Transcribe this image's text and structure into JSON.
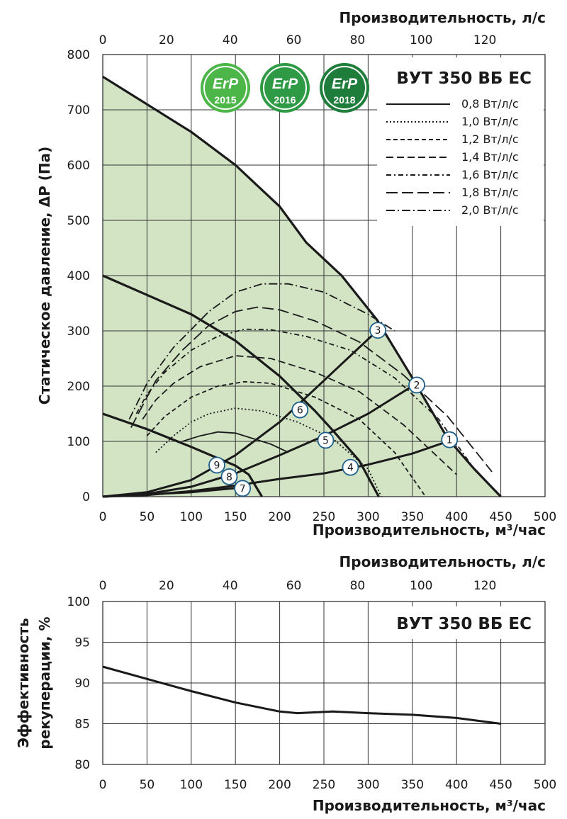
{
  "colors": {
    "fill": "#d2e4c4",
    "curve": "#1a1a1a",
    "grid": "#333333",
    "badge_green_1": "#4cb648",
    "badge_green_2": "#2e9a45",
    "badge_green_3": "#1f7d3c"
  },
  "badges": [
    {
      "title": "ErP",
      "year": "2015"
    },
    {
      "title": "ErP",
      "year": "2016"
    },
    {
      "title": "ErP",
      "year": "2018"
    }
  ],
  "chart_data": [
    {
      "type": "line",
      "model": "ВУТ 350 ВБ ЕС",
      "xlabel": "Производительность, м³/час",
      "x2label": "Производительность, л/с",
      "ylabel": "Статическое давление, ΔP (Па)",
      "xlim": [
        0,
        500
      ],
      "ylim": [
        0,
        800
      ],
      "x_ticks": [
        0,
        50,
        100,
        150,
        200,
        250,
        300,
        350,
        400,
        450,
        500
      ],
      "x2_ticks": [
        0,
        20,
        40,
        60,
        80,
        100,
        120
      ],
      "y_ticks": [
        0,
        100,
        200,
        300,
        400,
        500,
        600,
        700,
        800
      ],
      "legend": [
        {
          "label": "0,8 Вт/л/с",
          "dash": "solid"
        },
        {
          "label": "1,0 Вт/л/с",
          "dash": "2,3"
        },
        {
          "label": "1,2 Вт/л/с",
          "dash": "6,4"
        },
        {
          "label": "1,4 Вт/л/с",
          "dash": "10,5"
        },
        {
          "label": "1,6 Вт/л/с",
          "dash": "7,4,2,4"
        },
        {
          "label": "1,8 Вт/л/с",
          "dash": "16,6"
        },
        {
          "label": "2,0 Вт/л/с",
          "dash": "12,4,2,4"
        }
      ],
      "fan_curves": [
        {
          "name": "max",
          "points": [
            [
              0,
              760
            ],
            [
              50,
              710
            ],
            [
              100,
              660
            ],
            [
              150,
              600
            ],
            [
              200,
              525
            ],
            [
              230,
              460
            ],
            [
              270,
              400
            ],
            [
              310,
              320
            ],
            [
              350,
              215
            ],
            [
              390,
              105
            ],
            [
              420,
              50
            ],
            [
              450,
              0
            ]
          ]
        },
        {
          "name": "mid",
          "points": [
            [
              0,
              400
            ],
            [
              50,
              365
            ],
            [
              100,
              330
            ],
            [
              150,
              282
            ],
            [
              200,
              218
            ],
            [
              240,
              155
            ],
            [
              260,
              120
            ],
            [
              290,
              65
            ],
            [
              312,
              0
            ]
          ]
        },
        {
          "name": "low",
          "points": [
            [
              0,
              150
            ],
            [
              50,
              122
            ],
            [
              100,
              90
            ],
            [
              150,
              56
            ],
            [
              165,
              40
            ],
            [
              180,
              0
            ]
          ]
        }
      ],
      "network_curves": [
        {
          "name": "A",
          "points": [
            [
              0,
              0
            ],
            [
              50,
              8
            ],
            [
              100,
              30
            ],
            [
              150,
              75
            ],
            [
              200,
              135
            ],
            [
              250,
              210
            ],
            [
              310,
              300
            ]
          ]
        },
        {
          "name": "B",
          "points": [
            [
              0,
              0
            ],
            [
              50,
              5
            ],
            [
              100,
              18
            ],
            [
              150,
              42
            ],
            [
              200,
              75
            ],
            [
              250,
              110
            ],
            [
              300,
              150
            ],
            [
              350,
              200
            ]
          ]
        },
        {
          "name": "C",
          "points": [
            [
              0,
              0
            ],
            [
              50,
              3
            ],
            [
              100,
              10
            ],
            [
              150,
              20
            ],
            [
              200,
              32
            ],
            [
              250,
              42
            ],
            [
              300,
              58
            ],
            [
              350,
              78
            ],
            [
              390,
              100
            ]
          ]
        },
        {
          "name": "D",
          "points": [
            [
              0,
              0
            ],
            [
              100,
              8
            ],
            [
              160,
              17
            ]
          ]
        }
      ],
      "sfp_curves": [
        {
          "label": "0,8 Вт/л/с",
          "points": [
            [
              90,
              100
            ],
            [
              110,
              110
            ],
            [
              130,
              117
            ],
            [
              150,
              115
            ],
            [
              170,
              105
            ],
            [
              190,
              95
            ],
            [
              210,
              80
            ]
          ]
        },
        {
          "label": "1,0 Вт/л/с",
          "points": [
            [
              60,
              80
            ],
            [
              80,
              110
            ],
            [
              100,
              135
            ],
            [
              120,
              150
            ],
            [
              150,
              160
            ],
            [
              180,
              155
            ],
            [
              220,
              135
            ],
            [
              260,
              105
            ],
            [
              300,
              50
            ],
            [
              315,
              0
            ]
          ]
        },
        {
          "label": "1,2 Вт/л/с",
          "points": [
            [
              50,
              110
            ],
            [
              70,
              145
            ],
            [
              100,
              180
            ],
            [
              130,
              200
            ],
            [
              160,
              208
            ],
            [
              190,
              205
            ],
            [
              240,
              180
            ],
            [
              290,
              140
            ],
            [
              330,
              80
            ],
            [
              365,
              0
            ]
          ]
        },
        {
          "label": "1,4 Вт/л/с",
          "points": [
            [
              45,
              140
            ],
            [
              60,
              175
            ],
            [
              80,
              205
            ],
            [
              110,
              235
            ],
            [
              150,
              255
            ],
            [
              190,
              250
            ],
            [
              240,
              225
            ],
            [
              290,
              190
            ],
            [
              340,
              130
            ],
            [
              400,
              40
            ]
          ]
        },
        {
          "label": "1,6 Вт/л/с",
          "points": [
            [
              38,
              150
            ],
            [
              50,
              185
            ],
            [
              70,
              225
            ],
            [
              100,
              265
            ],
            [
              130,
              290
            ],
            [
              160,
              303
            ],
            [
              190,
              302
            ],
            [
              230,
              290
            ],
            [
              280,
              265
            ],
            [
              330,
              215
            ],
            [
              380,
              140
            ],
            [
              420,
              50
            ]
          ]
        },
        {
          "label": "1,8 Вт/л/с",
          "points": [
            [
              32,
              125
            ],
            [
              45,
              165
            ],
            [
              60,
              210
            ],
            [
              90,
              265
            ],
            [
              120,
              310
            ],
            [
              150,
              335
            ],
            [
              175,
              343
            ],
            [
              200,
              338
            ],
            [
              240,
              318
            ],
            [
              290,
              280
            ],
            [
              340,
              220
            ],
            [
              390,
              145
            ],
            [
              440,
              45
            ]
          ]
        },
        {
          "label": "2,0 Вт/л/с",
          "points": [
            [
              30,
              140
            ],
            [
              50,
              205
            ],
            [
              80,
              270
            ],
            [
              120,
              335
            ],
            [
              150,
              370
            ],
            [
              180,
              385
            ],
            [
              210,
              385
            ],
            [
              250,
              370
            ],
            [
              300,
              330
            ],
            [
              330,
              300
            ]
          ]
        }
      ],
      "markers": [
        {
          "label": "1",
          "x": 392,
          "y": 103
        },
        {
          "label": "2",
          "x": 355,
          "y": 202
        },
        {
          "label": "3",
          "x": 311,
          "y": 301
        },
        {
          "label": "4",
          "x": 280,
          "y": 53
        },
        {
          "label": "5",
          "x": 252,
          "y": 102
        },
        {
          "label": "6",
          "x": 223,
          "y": 157
        },
        {
          "label": "7",
          "x": 158,
          "y": 15
        },
        {
          "label": "8",
          "x": 143,
          "y": 36
        },
        {
          "label": "9",
          "x": 129,
          "y": 57
        }
      ]
    },
    {
      "type": "line",
      "model": "ВУТ 350 ВБ ЕС",
      "xlabel": "Производительность, м³/час",
      "x2label": "Производительность, л/с",
      "ylabel_line1": "Эффективность",
      "ylabel_line2": "рекуперации, %",
      "xlim": [
        0,
        500
      ],
      "ylim": [
        80,
        100
      ],
      "x_ticks": [
        0,
        50,
        100,
        150,
        200,
        250,
        300,
        350,
        400,
        450,
        500
      ],
      "x2_ticks": [
        0,
        20,
        40,
        60,
        80,
        100,
        120
      ],
      "y_ticks": [
        80,
        85,
        90,
        95,
        100
      ],
      "points": [
        [
          0,
          92
        ],
        [
          50,
          90.5
        ],
        [
          100,
          89
        ],
        [
          150,
          87.6
        ],
        [
          200,
          86.5
        ],
        [
          220,
          86.3
        ],
        [
          260,
          86.5
        ],
        [
          300,
          86.3
        ],
        [
          350,
          86.1
        ],
        [
          400,
          85.7
        ],
        [
          450,
          85
        ]
      ]
    }
  ]
}
